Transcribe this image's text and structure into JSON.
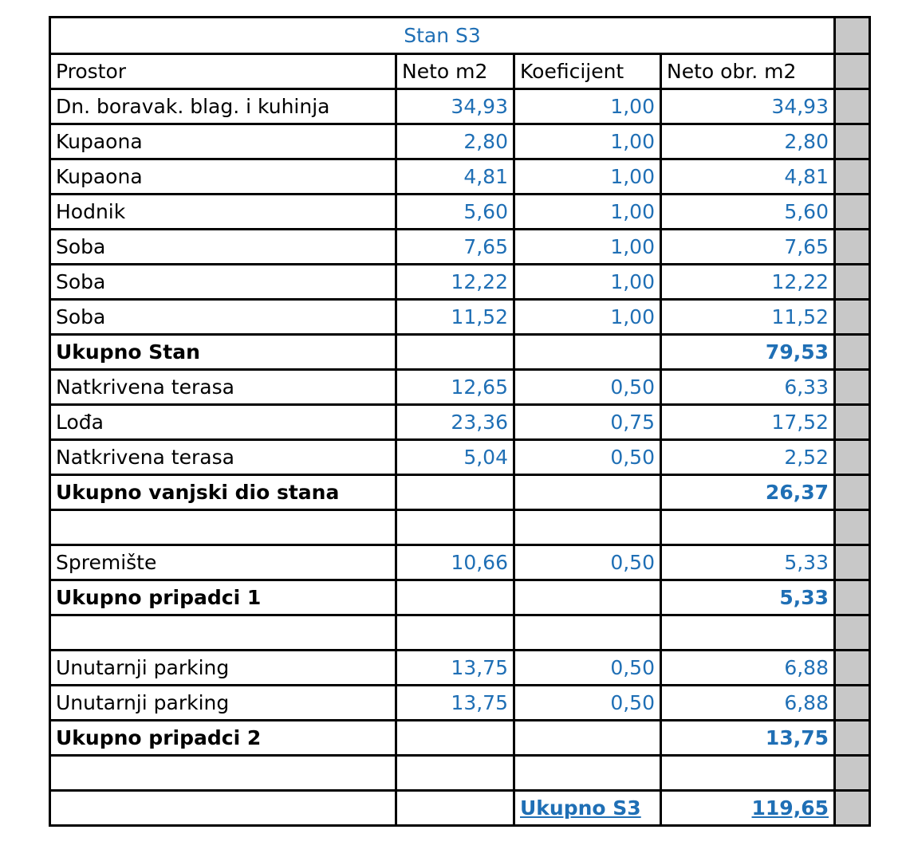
{
  "title": "Stan S3",
  "headers": [
    "Prostor",
    "Neto m2",
    "Koeficijent",
    "Neto obr. m2"
  ],
  "rows": [
    {
      "type": "item",
      "name": "Dn. boravak. blag. i kuhinja",
      "neto": "34,93",
      "koef": "1,00",
      "obr": "34,93"
    },
    {
      "type": "item",
      "name": "Kupaona",
      "neto": "2,80",
      "koef": "1,00",
      "obr": "2,80"
    },
    {
      "type": "item",
      "name": "Kupaona",
      "neto": "4,81",
      "koef": "1,00",
      "obr": "4,81"
    },
    {
      "type": "item",
      "name": "Hodnik",
      "neto": "5,60",
      "koef": "1,00",
      "obr": "5,60"
    },
    {
      "type": "item",
      "name": "Soba",
      "neto": "7,65",
      "koef": "1,00",
      "obr": "7,65"
    },
    {
      "type": "item",
      "name": "Soba",
      "neto": "12,22",
      "koef": "1,00",
      "obr": "12,22"
    },
    {
      "type": "item",
      "name": "Soba",
      "neto": "11,52",
      "koef": "1,00",
      "obr": "11,52"
    },
    {
      "type": "total",
      "name": "Ukupno Stan",
      "neto": "",
      "koef": "",
      "obr": "79,53"
    },
    {
      "type": "item",
      "name": "Natkrivena terasa",
      "neto": "12,65",
      "koef": "0,50",
      "obr": "6,33"
    },
    {
      "type": "item",
      "name": "Lođa",
      "neto": "23,36",
      "koef": "0,75",
      "obr": "17,52"
    },
    {
      "type": "item",
      "name": "Natkrivena terasa",
      "neto": "5,04",
      "koef": "0,50",
      "obr": "2,52"
    },
    {
      "type": "total",
      "name": "Ukupno vanjski dio stana",
      "neto": "",
      "koef": "",
      "obr": "26,37"
    },
    {
      "type": "blank"
    },
    {
      "type": "item",
      "name": "Spremište",
      "neto": "10,66",
      "koef": "0,50",
      "obr": "5,33"
    },
    {
      "type": "total",
      "name": "Ukupno pripadci 1",
      "neto": "",
      "koef": "",
      "obr": "5,33"
    },
    {
      "type": "blank"
    },
    {
      "type": "item",
      "name": "Unutarnji parking",
      "neto": "13,75",
      "koef": "0,50",
      "obr": "6,88"
    },
    {
      "type": "item",
      "name": "Unutarnji parking",
      "neto": "13,75",
      "koef": "0,50",
      "obr": "6,88"
    },
    {
      "type": "total",
      "name": "Ukupno pripadci 2",
      "neto": "",
      "koef": "",
      "obr": "13,75"
    },
    {
      "type": "blank"
    }
  ],
  "grand_total": {
    "label": "Ukupno S3",
    "value": "119,65"
  },
  "colors": {
    "blue": "#1f6fb5",
    "gray": "#c8c8c8"
  }
}
